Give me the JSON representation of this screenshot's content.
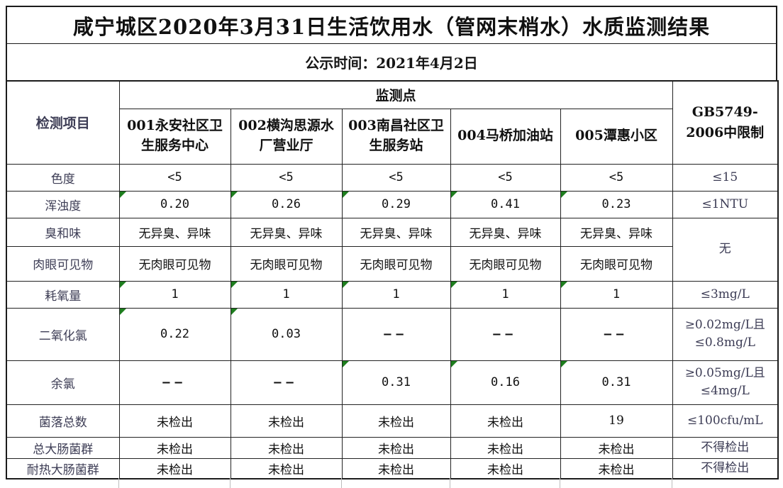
{
  "page": {
    "title": "咸宁城区2020年3月31日生活饮用水（管网末梢水）水质监测结果",
    "publish_time": "公示时间：2021年4月2日"
  },
  "table": {
    "corner_header": "检测项目",
    "group_header": "监测点",
    "limit_header": "GB5749-\n2006中限制",
    "sites": [
      "001永安社区卫生服务中心",
      "002横沟思源水厂营业厅",
      "003南昌社区卫生服务站",
      "004马桥加油站",
      "005潭惠小区"
    ],
    "rows": [
      {
        "label": "色度",
        "values": [
          "<5",
          "<5",
          "<5",
          "<5",
          "<5"
        ],
        "marks": [
          false,
          false,
          false,
          false,
          false
        ],
        "limit": "≤15"
      },
      {
        "label": "浑浊度",
        "values": [
          "0.20",
          "0.26",
          "0.29",
          "0.41",
          "0.23"
        ],
        "marks": [
          true,
          true,
          true,
          true,
          true
        ],
        "limit": "≤1NTU"
      },
      {
        "label": "臭和味",
        "values": [
          "无异臭、异味",
          "无异臭、异味",
          "无异臭、异味",
          "无异臭、异味",
          "无异臭、异味"
        ],
        "marks": [
          false,
          false,
          false,
          false,
          false
        ],
        "limit": "无",
        "limit_rowspan": 2,
        "cjk": true
      },
      {
        "label": "肉眼可见物",
        "values": [
          "无肉眼可见物",
          "无肉眼可见物",
          "无肉眼可见物",
          "无肉眼可见物",
          "无肉眼可见物"
        ],
        "marks": [
          false,
          false,
          false,
          false,
          false
        ],
        "limit_merged": true,
        "cjk": true
      },
      {
        "label": "耗氧量",
        "values": [
          "1",
          "1",
          "1",
          "1",
          "1"
        ],
        "marks": [
          true,
          true,
          true,
          true,
          true
        ],
        "limit": "≤3mg/L"
      },
      {
        "label": "二氧化氯",
        "values": [
          "0.22",
          "0.03",
          "——",
          "——",
          "——"
        ],
        "marks": [
          true,
          true,
          false,
          false,
          false
        ],
        "limit": "≥0.02mg/L且≤0.8mg/L"
      },
      {
        "label": "余氯",
        "values": [
          "——",
          "——",
          "0.31",
          "0.16",
          "0.31"
        ],
        "marks": [
          false,
          false,
          true,
          true,
          true
        ],
        "limit": "≥0.05mg/L且≤4mg/L"
      },
      {
        "label": "菌落总数",
        "values": [
          "未检出",
          "未检出",
          "未检出",
          "未检出",
          "19"
        ],
        "marks": [
          false,
          false,
          false,
          false,
          false
        ],
        "limit": "≤100cfu/mL",
        "cjk": true
      },
      {
        "label": "总大肠菌群",
        "values": [
          "未检出",
          "未检出",
          "未检出",
          "未检出",
          "未检出"
        ],
        "marks": [
          false,
          false,
          false,
          false,
          false
        ],
        "limit": "不得检出",
        "cjk": true
      },
      {
        "label": "耐热大肠菌群",
        "values": [
          "未检出",
          "未检出",
          "未检出",
          "未检出",
          "未检出"
        ],
        "marks": [
          false,
          false,
          false,
          false,
          false
        ],
        "limit": "不得检出",
        "cjk": true
      }
    ]
  },
  "colors": {
    "border": "#1b1b1b",
    "label_text": "#3d3d55",
    "value_text": "#101010",
    "corner_marker_green": "#1e7e1e",
    "gridline_stub_gray": "#bdbdbd"
  },
  "icons": {
    "corner_marker": "excel-green-corner-triangle"
  }
}
